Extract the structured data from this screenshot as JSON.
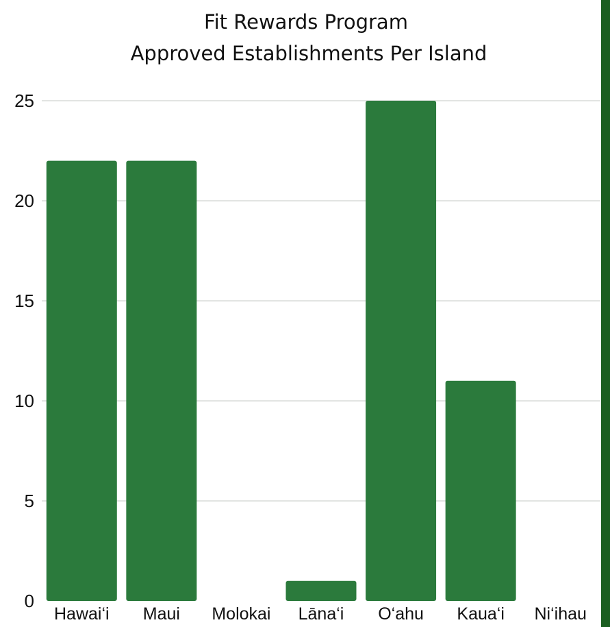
{
  "chart_data": {
    "type": "bar",
    "title_lines": [
      "Fit Rewards Program",
      "Approved Establishments Per Island"
    ],
    "categories": [
      "Hawai‘i",
      "Maui",
      "Molokai",
      "Lāna‘i",
      "O‘ahu",
      "Kaua‘i",
      "Ni‘ihau"
    ],
    "values": [
      22,
      22,
      0,
      1,
      25,
      11,
      0
    ],
    "xlabel": "",
    "ylabel": "",
    "ylim": [
      0,
      25
    ],
    "yticks": [
      0,
      5,
      10,
      15,
      20,
      25
    ],
    "grid": true,
    "legend": "none",
    "colors": {
      "bar": "#2b7a3c",
      "frame_accent": "#1b5e20"
    }
  }
}
